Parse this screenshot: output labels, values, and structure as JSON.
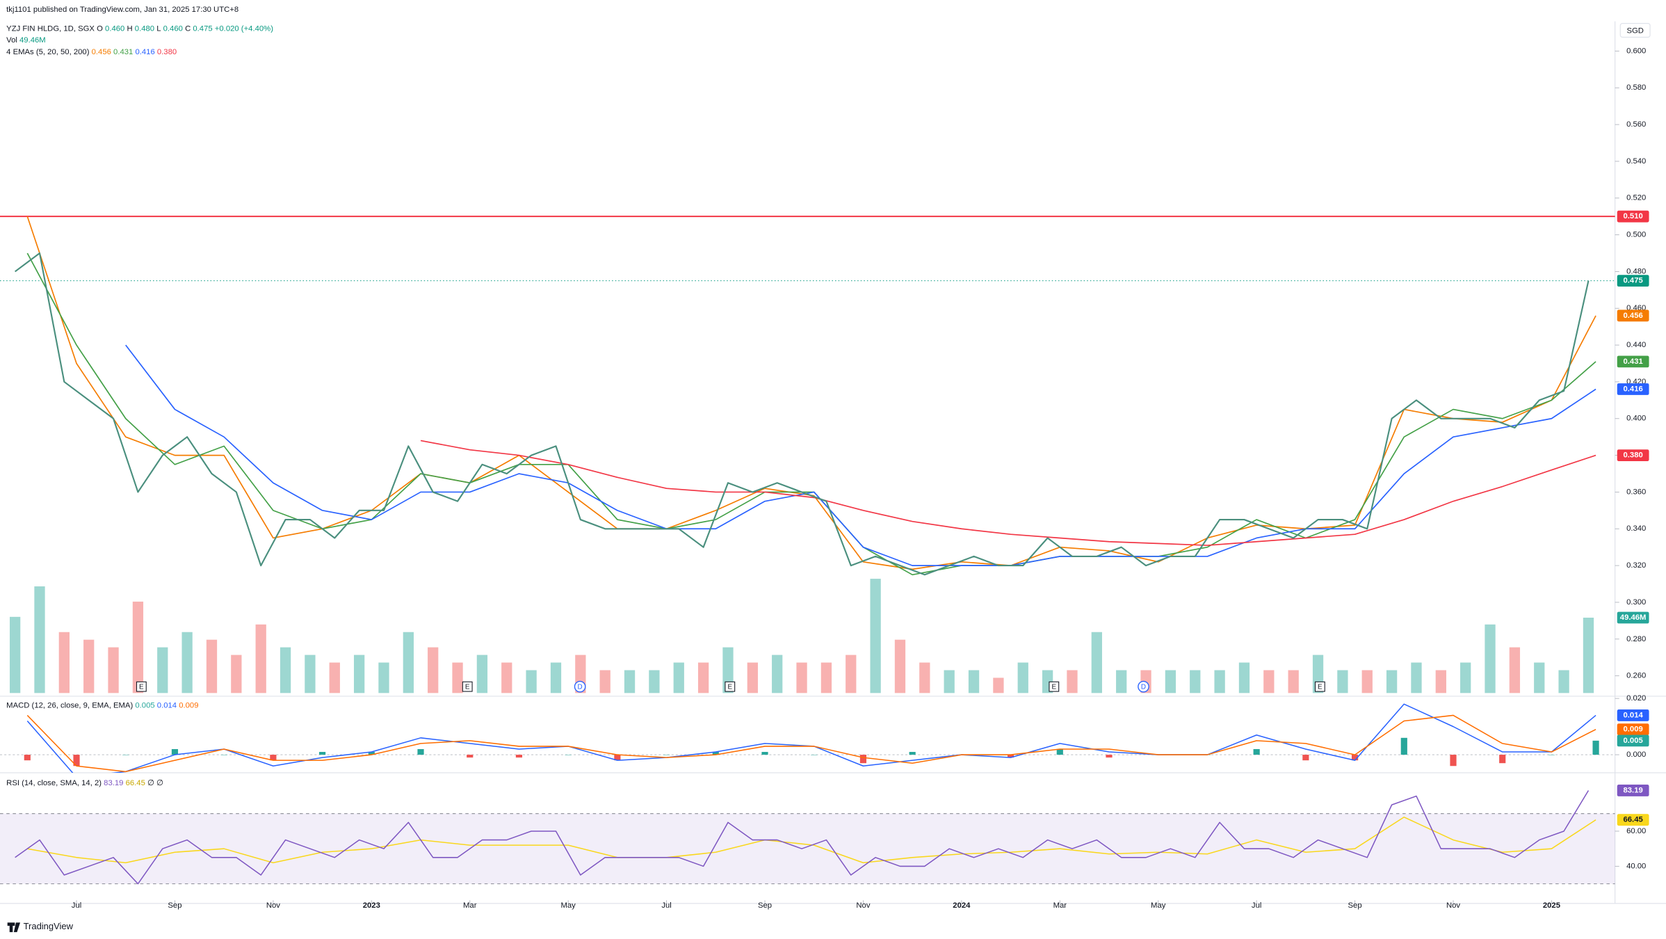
{
  "header": {
    "published": "tkj1101 published on TradingView.com, Jan 31, 2025 17:30 UTC+8",
    "symbol": "YZJ FIN HLDG, 1D, SGX",
    "o_label": "O",
    "o": "0.460",
    "h_label": "H",
    "h": "0.480",
    "l_label": "L",
    "l": "0.460",
    "c_label": "C",
    "c": "0.475",
    "change": "+0.020 (+4.40%)",
    "vol_label": "Vol",
    "ema_label": "4 EMAs (5, 20, 50, 200)",
    "currency": "SGD"
  },
  "footer": "TradingView",
  "chart_data": {
    "type": "financial",
    "xlim": [
      4.444,
      37.29
    ],
    "xticks": [
      {
        "value": 6,
        "label": "Jul"
      },
      {
        "value": 8,
        "label": "Sep"
      },
      {
        "value": 10,
        "label": "Nov"
      },
      {
        "value": 12,
        "label": "2023"
      },
      {
        "value": 14,
        "label": "Mar"
      },
      {
        "value": 16,
        "label": "May"
      },
      {
        "value": 18,
        "label": "Jul"
      },
      {
        "value": 20,
        "label": "Sep"
      },
      {
        "value": 22,
        "label": "Nov"
      },
      {
        "value": 24,
        "label": "2024"
      },
      {
        "value": 26,
        "label": "Mar"
      },
      {
        "value": 28,
        "label": "May"
      },
      {
        "value": 30,
        "label": "Jul"
      },
      {
        "value": 32,
        "label": "Sep"
      },
      {
        "value": 34,
        "label": "Nov"
      },
      {
        "value": 36,
        "label": "2025"
      }
    ],
    "ylim": [
      0.2489,
      0.6162
    ],
    "yticks": [
      {
        "value": 0.26,
        "label": "0.260"
      },
      {
        "value": 0.28,
        "label": "0.280"
      },
      {
        "value": 0.3,
        "label": "0.300"
      },
      {
        "value": 0.32,
        "label": "0.320"
      },
      {
        "value": 0.34,
        "label": "0.340"
      },
      {
        "value": 0.36,
        "label": "0.360"
      },
      {
        "value": 0.38,
        "label": "0.380"
      },
      {
        "value": 0.4,
        "label": "0.400"
      },
      {
        "value": 0.42,
        "label": "0.420"
      },
      {
        "value": 0.44,
        "label": "0.440"
      },
      {
        "value": 0.46,
        "label": "0.460"
      },
      {
        "value": 0.48,
        "label": "0.480"
      },
      {
        "value": 0.5,
        "label": "0.500"
      },
      {
        "value": 0.52,
        "label": "0.520"
      },
      {
        "value": 0.54,
        "label": "0.540"
      },
      {
        "value": 0.56,
        "label": "0.560"
      },
      {
        "value": 0.58,
        "label": "0.580"
      },
      {
        "value": 0.6,
        "label": "0.600"
      }
    ],
    "price": {
      "color": "#4a8f7e",
      "x": [
        4.75,
        5.25,
        5.75,
        6.25,
        6.75,
        7.25,
        7.75,
        8.25,
        8.75,
        9.25,
        9.75,
        10.25,
        10.75,
        11.25,
        11.75,
        12.25,
        12.75,
        13.25,
        13.75,
        14.25,
        14.75,
        15.25,
        15.75,
        16.25,
        16.75,
        17.25,
        17.75,
        18.25,
        18.75,
        19.25,
        19.75,
        20.25,
        20.75,
        21.25,
        21.75,
        22.25,
        22.75,
        23.25,
        23.75,
        24.25,
        24.75,
        25.25,
        25.75,
        26.25,
        26.75,
        27.25,
        27.75,
        28.25,
        28.75,
        29.25,
        29.75,
        30.25,
        30.75,
        31.25,
        31.75,
        32.25,
        32.75,
        33.25,
        33.75,
        34.25,
        34.75,
        35.25,
        35.75,
        36.25,
        36.75
      ],
      "close": [
        0.48,
        0.49,
        0.42,
        0.41,
        0.4,
        0.36,
        0.38,
        0.39,
        0.37,
        0.36,
        0.32,
        0.345,
        0.345,
        0.335,
        0.35,
        0.35,
        0.385,
        0.36,
        0.355,
        0.375,
        0.37,
        0.38,
        0.385,
        0.345,
        0.34,
        0.34,
        0.34,
        0.34,
        0.33,
        0.365,
        0.36,
        0.365,
        0.36,
        0.355,
        0.32,
        0.325,
        0.32,
        0.315,
        0.32,
        0.325,
        0.32,
        0.32,
        0.335,
        0.325,
        0.325,
        0.33,
        0.32,
        0.325,
        0.325,
        0.345,
        0.345,
        0.34,
        0.335,
        0.345,
        0.345,
        0.34,
        0.4,
        0.41,
        0.4,
        0.4,
        0.4,
        0.395,
        0.41,
        0.415,
        0.475
      ]
    },
    "hline": {
      "value": 0.51,
      "label": "0.510",
      "color": "#f23645"
    },
    "last": {
      "value": 0.475,
      "label": "0.475",
      "color": "#089981"
    },
    "monthly_x": [
      5,
      6,
      7,
      8,
      9,
      10,
      11,
      12,
      13,
      14,
      15,
      16,
      17,
      18,
      19,
      20,
      21,
      22,
      23,
      24,
      25,
      26,
      27,
      28,
      29,
      30,
      31,
      32,
      33,
      34,
      35,
      36,
      36.9
    ],
    "emas": [
      {
        "color": "#f57c00",
        "label": "0.456",
        "values": [
          0.51,
          0.43,
          0.39,
          0.38,
          0.38,
          0.335,
          0.34,
          0.35,
          0.37,
          0.365,
          0.38,
          0.36,
          0.34,
          0.34,
          0.35,
          0.362,
          0.358,
          0.322,
          0.318,
          0.322,
          0.32,
          0.33,
          0.328,
          0.322,
          0.335,
          0.342,
          0.34,
          0.342,
          0.405,
          0.4,
          0.398,
          0.41,
          0.456
        ]
      },
      {
        "color": "#43a047",
        "label": "0.431",
        "values": [
          0.49,
          0.44,
          0.4,
          0.375,
          0.385,
          0.35,
          0.34,
          0.345,
          0.37,
          0.365,
          0.375,
          0.375,
          0.345,
          0.34,
          0.345,
          0.36,
          0.36,
          0.33,
          0.315,
          0.32,
          0.32,
          0.325,
          0.325,
          0.325,
          0.33,
          0.345,
          0.335,
          0.345,
          0.39,
          0.405,
          0.4,
          0.41,
          0.431
        ]
      },
      {
        "color": "#2962ff",
        "label": "0.416",
        "values": [
          null,
          null,
          0.44,
          0.405,
          0.39,
          0.365,
          0.35,
          0.345,
          0.36,
          0.36,
          0.37,
          0.365,
          0.35,
          0.34,
          0.34,
          0.355,
          0.36,
          0.33,
          0.32,
          0.32,
          0.32,
          0.325,
          0.325,
          0.325,
          0.325,
          0.335,
          0.34,
          0.34,
          0.37,
          0.39,
          0.395,
          0.4,
          0.416
        ]
      },
      {
        "color": "#f23645",
        "label": "0.380",
        "values": [
          null,
          null,
          null,
          null,
          null,
          null,
          null,
          null,
          0.388,
          0.383,
          0.38,
          0.375,
          0.368,
          0.362,
          0.36,
          0.36,
          0.357,
          0.35,
          0.344,
          0.34,
          0.337,
          0.335,
          0.333,
          0.332,
          0.331,
          0.333,
          0.335,
          0.337,
          0.345,
          0.355,
          0.363,
          0.372,
          0.38
        ]
      }
    ],
    "volume": {
      "vlim": [
        0,
        150
      ],
      "last_label": "49.46M",
      "up_color": "#26a69a",
      "down_color": "#ef5350",
      "values": [
        50,
        70,
        40,
        35,
        30,
        60,
        30,
        40,
        35,
        25,
        45,
        30,
        25,
        20,
        25,
        20,
        40,
        30,
        20,
        25,
        20,
        15,
        20,
        25,
        15,
        15,
        15,
        20,
        20,
        30,
        20,
        25,
        20,
        20,
        25,
        75,
        35,
        20,
        15,
        15,
        10,
        20,
        15,
        15,
        40,
        15,
        15,
        15,
        15,
        15,
        20,
        15,
        15,
        25,
        15,
        15,
        15,
        20,
        15,
        20,
        45,
        30,
        20,
        15,
        49.46
      ]
    },
    "events": [
      {
        "x": 7.32,
        "label": "E"
      },
      {
        "x": 13.95,
        "label": "E"
      },
      {
        "x": 16.24,
        "label": "D"
      },
      {
        "x": 19.29,
        "label": "E"
      },
      {
        "x": 25.88,
        "label": "E"
      },
      {
        "x": 27.7,
        "label": "D"
      },
      {
        "x": 31.29,
        "label": "E"
      }
    ],
    "macd": {
      "title": "MACD (12, 26, close, 9, EMA, EMA)",
      "ylim": [
        -0.0064,
        0.0208
      ],
      "yticks": [
        {
          "value": 0,
          "label": "0.000"
        },
        {
          "value": 0.02,
          "label": "0.020"
        }
      ],
      "hist_color_up": "#26a69a",
      "hist_color_down": "#ef5350",
      "hist": [
        -0.002,
        -0.004,
        0,
        0.002,
        0,
        -0.002,
        0.001,
        0.001,
        0.002,
        -0.001,
        -0.001,
        0,
        -0.002,
        0,
        0.001,
        0.001,
        0,
        -0.003,
        0.001,
        0,
        -0.001,
        0.002,
        -0.001,
        0,
        0,
        0.002,
        -0.002,
        -0.002,
        0.006,
        -0.004,
        -0.003,
        0,
        0.005
      ],
      "macd_color": "#2962ff",
      "macd": [
        0.012,
        -0.008,
        -0.006,
        0,
        0.002,
        -0.004,
        -0.001,
        0.001,
        0.006,
        0.004,
        0.002,
        0.003,
        -0.002,
        -0.001,
        0.001,
        0.004,
        0.003,
        -0.004,
        -0.002,
        0,
        -0.001,
        0.004,
        0.001,
        0,
        0,
        0.007,
        0.002,
        -0.002,
        0.018,
        0.01,
        0.001,
        0.001,
        0.014
      ],
      "signal_color": "#ff6d00",
      "signal": [
        0.014,
        -0.004,
        -0.006,
        -0.002,
        0.002,
        -0.002,
        -0.002,
        0,
        0.004,
        0.005,
        0.003,
        0.003,
        0,
        -0.001,
        0,
        0.003,
        0.003,
        -0.001,
        -0.003,
        0,
        0,
        0.002,
        0.002,
        0,
        0,
        0.005,
        0.004,
        0,
        0.012,
        0.014,
        0.004,
        0.001,
        0.009
      ]
    },
    "rsi": {
      "title": "RSI (14, close, SMA, 14, 2)",
      "extra": "∅ ∅",
      "ylim": [
        18.8,
        93.3
      ],
      "yticks": [
        {
          "value": 40,
          "label": "40.00"
        },
        {
          "value": 60,
          "label": "60.00"
        }
      ],
      "band": [
        30,
        70
      ],
      "color": "#7e57c2",
      "ma_color": "#f9d71c",
      "values": [
        45,
        55,
        35,
        40,
        45,
        30,
        50,
        55,
        45,
        45,
        35,
        55,
        50,
        45,
        55,
        50,
        65,
        45,
        45,
        55,
        55,
        60,
        60,
        35,
        45,
        45,
        45,
        45,
        40,
        65,
        55,
        55,
        50,
        55,
        35,
        45,
        40,
        40,
        50,
        45,
        50,
        45,
        55,
        50,
        55,
        45,
        45,
        50,
        45,
        65,
        50,
        50,
        45,
        55,
        50,
        45,
        75,
        80,
        50,
        50,
        50,
        45,
        55,
        60,
        83.19
      ],
      "ma": [
        50,
        45,
        42,
        48,
        50,
        42,
        48,
        50,
        55,
        52,
        52,
        52,
        45,
        45,
        48,
        55,
        52,
        42,
        45,
        47,
        48,
        50,
        47,
        48,
        47,
        55,
        48,
        50,
        68,
        55,
        48,
        50,
        66.45
      ]
    }
  }
}
